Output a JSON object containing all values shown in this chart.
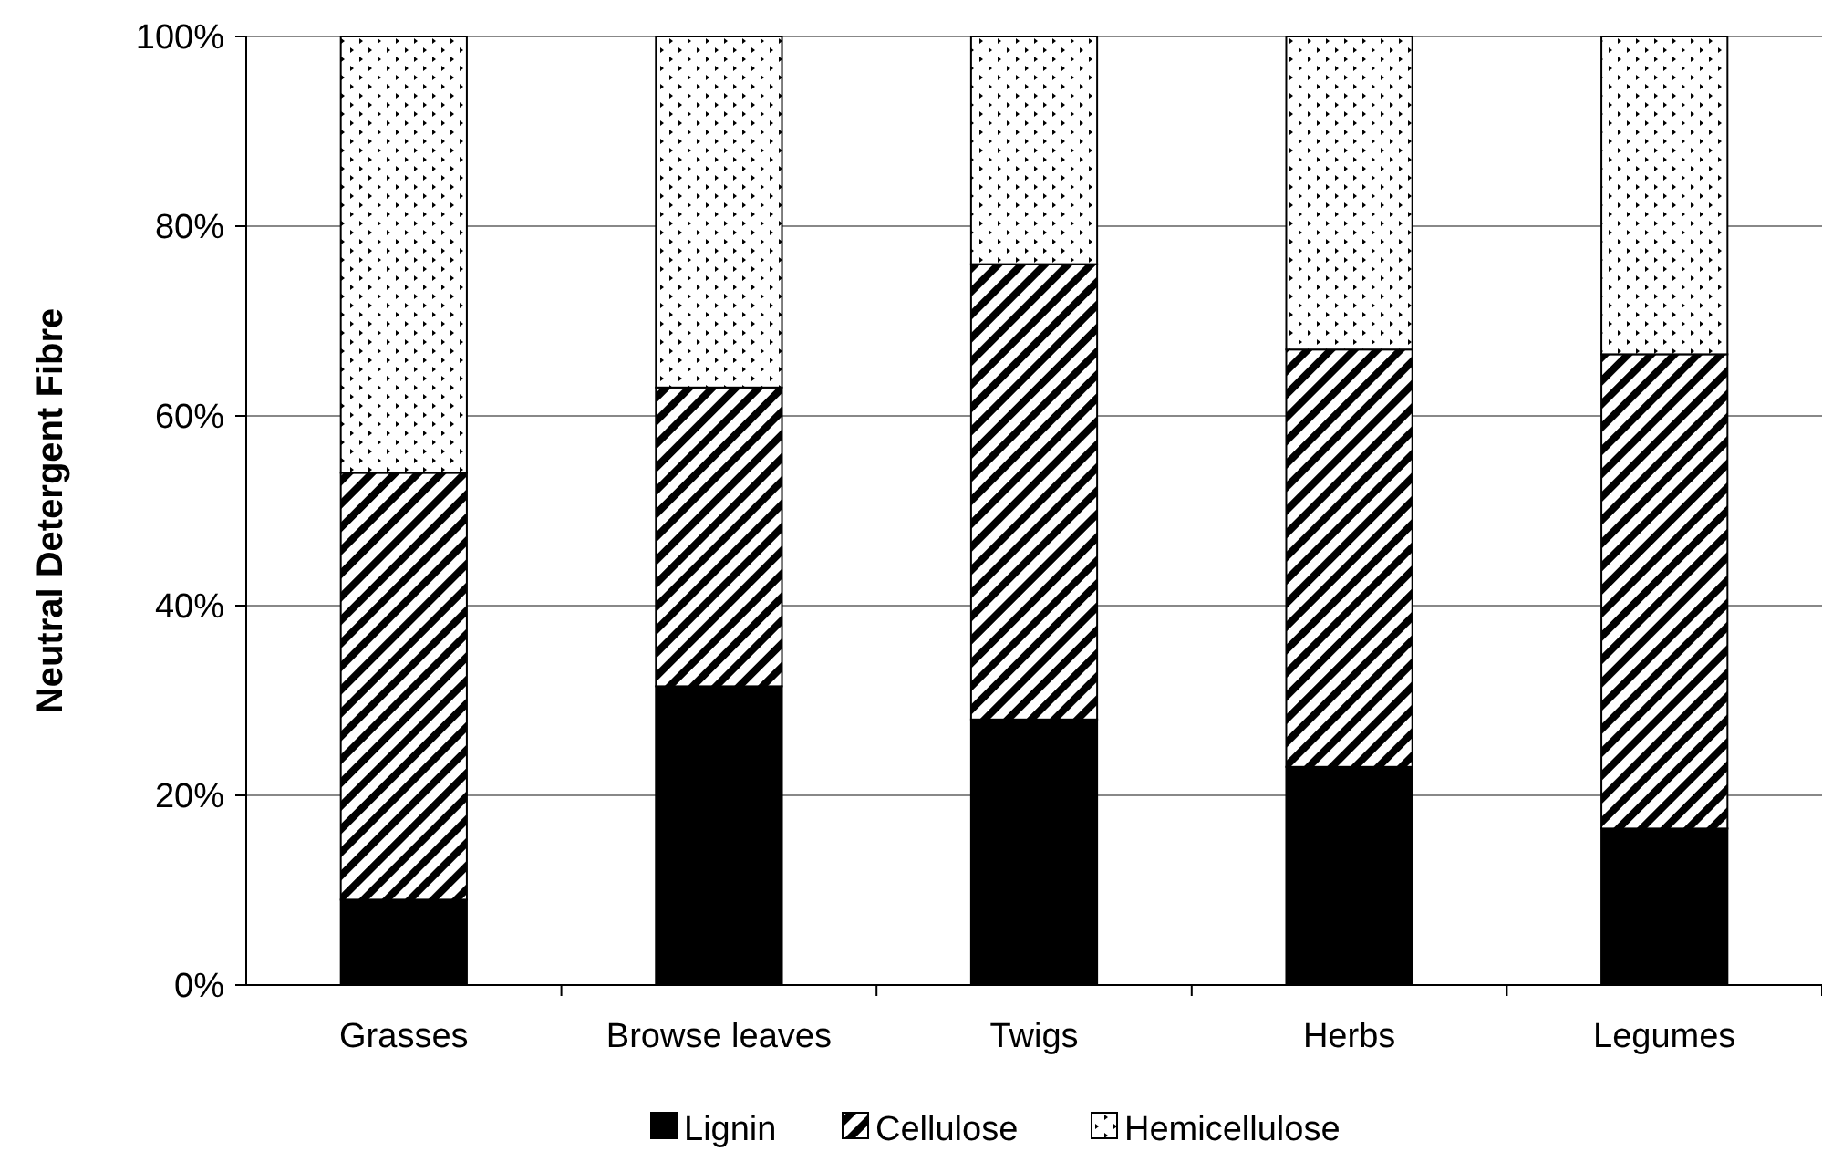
{
  "chart_data": {
    "type": "bar",
    "stacked": true,
    "ylabel": "Neutral Detergent Fibre",
    "categories": [
      "Grasses",
      "Browse leaves",
      "Twigs",
      "Herbs",
      "Legumes"
    ],
    "series": [
      {
        "name": "Lignin",
        "color": "#000000",
        "values": [
          9,
          31.5,
          28,
          23,
          16.5
        ]
      },
      {
        "name": "Cellulose",
        "color": "#000000",
        "values": [
          45,
          31.5,
          48,
          44,
          50
        ]
      },
      {
        "name": "Hemicellulose",
        "color": "#000000",
        "values": [
          46,
          37,
          24,
          33,
          33.5
        ]
      }
    ],
    "ylim": [
      0,
      100
    ],
    "yticks": [
      {
        "value": 0,
        "label": "0%"
      },
      {
        "value": 20,
        "label": "20%"
      },
      {
        "value": 40,
        "label": "40%"
      },
      {
        "value": 60,
        "label": "60%"
      },
      {
        "value": 80,
        "label": "80%"
      },
      {
        "value": 100,
        "label": "100%"
      }
    ],
    "grid": "y",
    "legend": "bottom"
  }
}
